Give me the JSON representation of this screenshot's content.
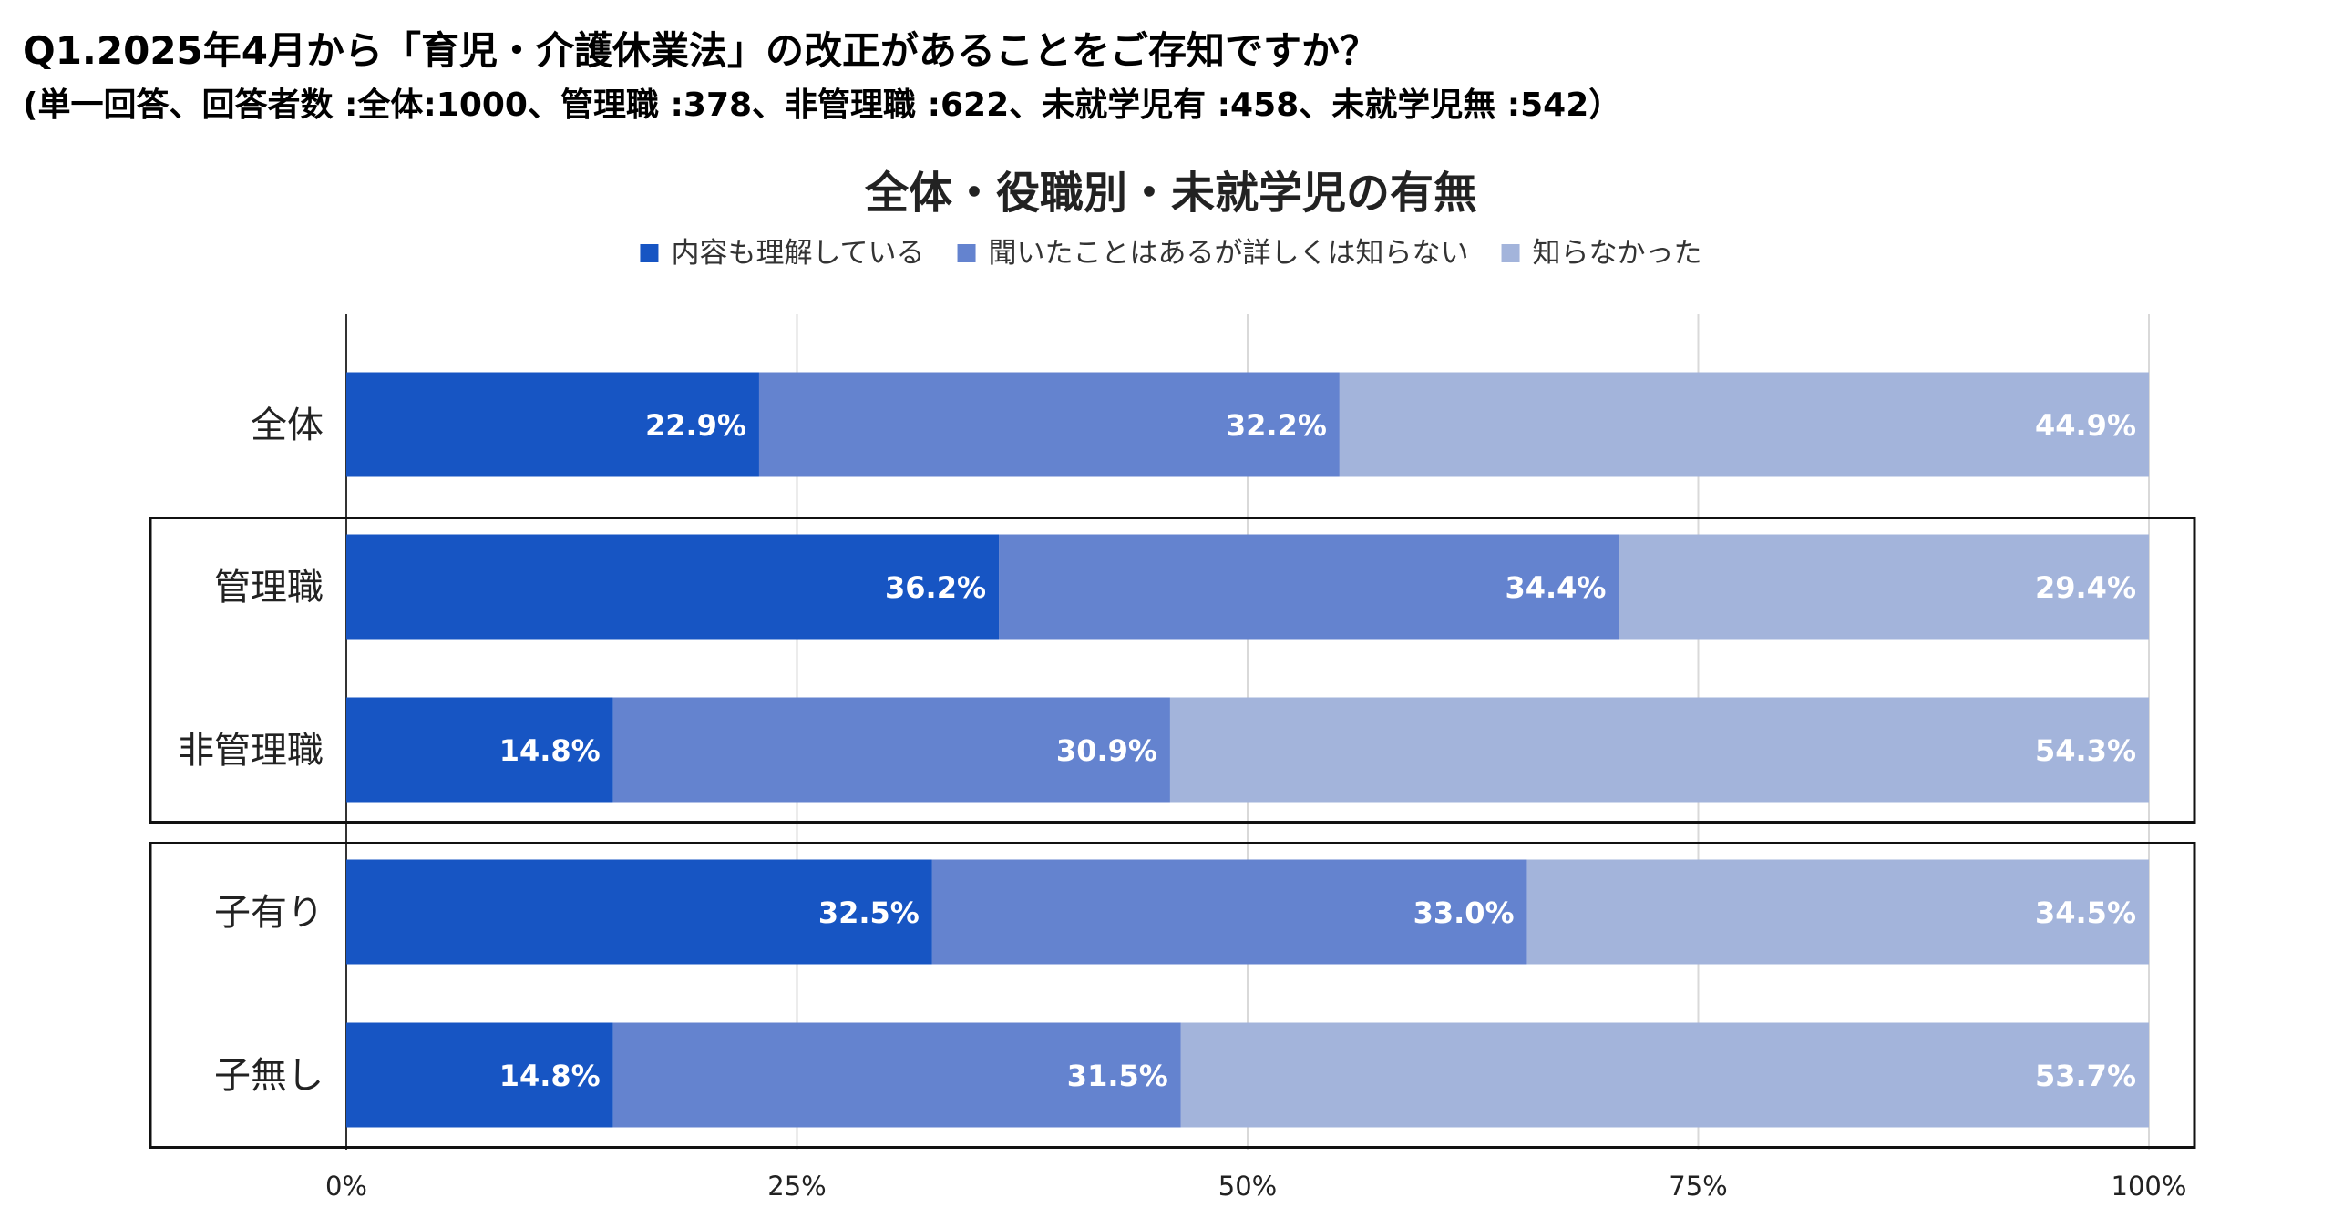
{
  "question": "Q1.2025年4月から「育児・介護休業法」の改正があることをご存知ですか？",
  "note": "(単一回答、回答者数 :全体:1000、管理職 :378、非管理職 :622、未就学児有 :458、未就学児無 :542）",
  "chart_data": {
    "type": "bar",
    "orientation": "horizontal",
    "stacked": true,
    "title": "全体・役職別・未就学児の有無",
    "categories": [
      "全体",
      "管理職",
      "非管理職",
      "子有り",
      "子無し"
    ],
    "series": [
      {
        "name": "内容も理解している",
        "values": [
          22.9,
          36.2,
          14.8,
          32.5,
          14.8
        ],
        "labels": [
          "22.9%",
          "36.2%",
          "14.8%",
          "32.5%",
          "14.8%"
        ],
        "color": "#1755c3"
      },
      {
        "name": "聞いたことはあるが詳しくは知らない",
        "values": [
          32.2,
          34.4,
          30.9,
          33.0,
          31.5
        ],
        "labels": [
          "32.2%",
          "34.4%",
          "30.9%",
          "33.0%",
          "31.5%"
        ],
        "color": "#6483cf"
      },
      {
        "name": "知らなかった",
        "values": [
          44.9,
          29.4,
          54.3,
          34.5,
          53.7
        ],
        "labels": [
          "44.9%",
          "29.4%",
          "54.3%",
          "34.5%",
          "53.7%"
        ],
        "color": "#a3b4db"
      }
    ],
    "xlim": [
      0,
      100
    ],
    "xticks": [
      0,
      25,
      50,
      75,
      100
    ],
    "xtick_labels": [
      "0%",
      "25%",
      "50%",
      "75%",
      "100%"
    ],
    "grid": true,
    "legend_position": "top",
    "groups_boxed": [
      [
        "管理職",
        "非管理職"
      ],
      [
        "子有り",
        "子無し"
      ]
    ]
  }
}
